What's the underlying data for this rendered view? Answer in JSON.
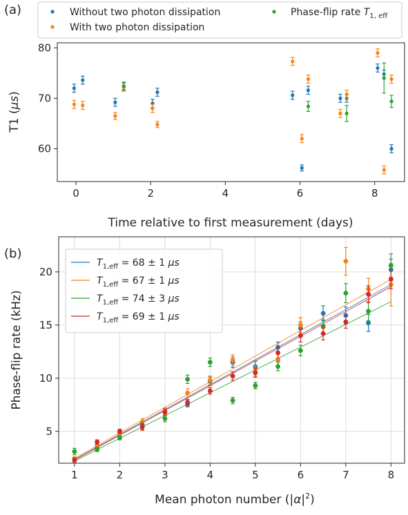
{
  "chart_data": [
    {
      "type": "scatter",
      "panel_label": "(a)",
      "xlabel": "Time relative to first measurement (days)",
      "ylabel_main": "T1 (",
      "ylabel_unit": "μs",
      "ylabel_close": ")",
      "xlim": [
        -0.5,
        8.8
      ],
      "ylim": [
        53.5,
        81
      ],
      "xticks": [
        0,
        2,
        4,
        6,
        8
      ],
      "xtick_labels": [
        "0",
        "2",
        "4",
        "6",
        "8"
      ],
      "yticks": [
        60,
        70,
        80
      ],
      "ytick_labels": [
        "60",
        "70",
        "80"
      ],
      "legend_placement": "top",
      "legend": {
        "s1": "Without two photon dissipation",
        "s2": "With two photon dissipation",
        "s3_main": "Phase-flip rate ",
        "s3_var": "T",
        "s3_sub": "1, eff"
      },
      "series": [
        {
          "key": "blue",
          "color": "#1f77b4",
          "points": [
            [
              -0.05,
              72.0,
              0.8
            ],
            [
              0.18,
              73.6,
              0.8
            ],
            [
              1.05,
              69.2,
              0.8
            ],
            [
              1.28,
              72.4,
              0.8
            ],
            [
              2.05,
              69.0,
              0.8
            ],
            [
              2.18,
              71.2,
              0.8
            ],
            [
              5.8,
              70.6,
              0.8
            ],
            [
              6.05,
              56.2,
              0.6
            ],
            [
              6.22,
              71.6,
              0.8
            ],
            [
              7.08,
              70.0,
              0.8
            ],
            [
              7.25,
              70.0,
              0.8
            ],
            [
              8.08,
              76.0,
              0.8
            ],
            [
              8.25,
              74.8,
              0.8
            ],
            [
              8.45,
              60.0,
              0.8
            ]
          ]
        },
        {
          "key": "orange",
          "color": "#ff7f0e",
          "points": [
            [
              -0.05,
              68.8,
              0.8
            ],
            [
              0.18,
              68.6,
              0.8
            ],
            [
              1.05,
              66.5,
              0.7
            ],
            [
              1.28,
              72.2,
              0.8
            ],
            [
              2.05,
              68.0,
              0.8
            ],
            [
              2.18,
              64.8,
              0.6
            ],
            [
              5.8,
              77.3,
              0.8
            ],
            [
              6.05,
              62.0,
              0.8
            ],
            [
              6.22,
              73.8,
              0.8
            ],
            [
              7.08,
              67.0,
              0.8
            ],
            [
              7.25,
              70.8,
              0.8
            ],
            [
              8.08,
              79.0,
              0.8
            ],
            [
              8.25,
              55.8,
              0.8
            ],
            [
              8.45,
              73.8,
              0.8
            ]
          ]
        },
        {
          "key": "green",
          "color": "#2ca02c",
          "points": [
            [
              1.28,
              72.4,
              0.7
            ],
            [
              6.22,
              68.4,
              1.0
            ],
            [
              7.25,
              67.0,
              1.6
            ],
            [
              8.25,
              74.0,
              3.0
            ],
            [
              8.45,
              69.4,
              1.2
            ]
          ]
        }
      ]
    },
    {
      "type": "scatter",
      "panel_label": "(b)",
      "xlabel_main": "Mean photon number (",
      "xlabel_var": "|α|",
      "xlabel_sup": "2",
      "xlabel_close": ")",
      "ylabel": "Phase-flip rate (kHz)",
      "xlim": [
        0.65,
        8.3
      ],
      "ylim": [
        2.0,
        23.3
      ],
      "xticks": [
        1,
        2,
        3,
        4,
        5,
        6,
        7,
        8
      ],
      "xtick_labels": [
        "1",
        "2",
        "3",
        "4",
        "5",
        "6",
        "7",
        "8"
      ],
      "yticks": [
        5,
        10,
        15,
        20
      ],
      "ytick_labels": [
        "5",
        "10",
        "15",
        "20"
      ],
      "grid": true,
      "legend_placement": "top-left",
      "legend": [
        {
          "var": "T",
          "sub": "1,eff",
          "eq": " = 68 ± 1  ",
          "unit": "μs"
        },
        {
          "var": "T",
          "sub": "1,eff",
          "eq": " = 67 ± 1  ",
          "unit": "μs"
        },
        {
          "var": "T",
          "sub": "1,eff",
          "eq": " = 74 ± 3  ",
          "unit": "μs"
        },
        {
          "var": "T",
          "sub": "1,eff",
          "eq": " = 69 ± 1  ",
          "unit": "μs"
        }
      ],
      "series": [
        {
          "key": "blue",
          "color": "#1f77b4",
          "line": [
            [
              1,
              2.35
            ],
            [
              8,
              18.8
            ]
          ],
          "points": [
            [
              1,
              2.3,
              0.2
            ],
            [
              1.5,
              3.5,
              0.2
            ],
            [
              2,
              4.9,
              0.2
            ],
            [
              2.5,
              5.6,
              0.3
            ],
            [
              3,
              6.8,
              0.3
            ],
            [
              3.5,
              7.6,
              0.3
            ],
            [
              4,
              9.7,
              0.4
            ],
            [
              4.5,
              11.5,
              0.5
            ],
            [
              5,
              11.1,
              0.5
            ],
            [
              5.5,
              12.9,
              0.5
            ],
            [
              6,
              14.7,
              0.6
            ],
            [
              6.5,
              16.1,
              0.7
            ],
            [
              7,
              15.9,
              0.8
            ],
            [
              7.5,
              15.2,
              0.8
            ],
            [
              8,
              20.2,
              1.0
            ]
          ]
        },
        {
          "key": "orange",
          "color": "#ff7f0e",
          "line": [
            [
              1,
              2.45
            ],
            [
              8,
              19.3
            ]
          ],
          "points": [
            [
              1,
              2.4,
              0.2
            ],
            [
              1.5,
              3.7,
              0.2
            ],
            [
              2,
              4.8,
              0.2
            ],
            [
              2.5,
              5.9,
              0.3
            ],
            [
              3,
              6.9,
              0.3
            ],
            [
              3.5,
              8.6,
              0.4
            ],
            [
              4,
              9.8,
              0.4
            ],
            [
              4.5,
              11.7,
              0.5
            ],
            [
              5,
              10.7,
              0.5
            ],
            [
              5.5,
              11.7,
              0.5
            ],
            [
              6,
              15.0,
              0.7
            ],
            [
              6.5,
              14.8,
              0.7
            ],
            [
              7,
              21.0,
              1.3
            ],
            [
              7.5,
              18.4,
              1.0
            ],
            [
              8,
              18.8,
              2.0
            ]
          ]
        },
        {
          "key": "green",
          "color": "#2ca02c",
          "line": [
            [
              1,
              2.2
            ],
            [
              8,
              17.2
            ]
          ],
          "points": [
            [
              1,
              3.1,
              0.3
            ],
            [
              1.5,
              3.3,
              0.2
            ],
            [
              2,
              4.4,
              0.2
            ],
            [
              2.5,
              5.5,
              0.3
            ],
            [
              3,
              6.2,
              0.3
            ],
            [
              3.5,
              9.9,
              0.4
            ],
            [
              4,
              11.5,
              0.4
            ],
            [
              4.5,
              7.9,
              0.3
            ],
            [
              5,
              9.3,
              0.3
            ],
            [
              5.5,
              11.1,
              0.4
            ],
            [
              6,
              12.6,
              0.5
            ],
            [
              6.5,
              14.9,
              0.6
            ],
            [
              7,
              18.0,
              0.9
            ],
            [
              7.5,
              16.3,
              0.9
            ],
            [
              8,
              20.6,
              1.1
            ]
          ]
        },
        {
          "key": "red",
          "color": "#d62728",
          "line": [
            [
              1,
              2.3
            ],
            [
              8,
              18.6
            ]
          ],
          "points": [
            [
              1,
              2.3,
              0.2
            ],
            [
              1.5,
              4.0,
              0.2
            ],
            [
              2,
              5.0,
              0.2
            ],
            [
              2.5,
              5.4,
              0.3
            ],
            [
              3,
              6.8,
              0.3
            ],
            [
              3.5,
              7.7,
              0.3
            ],
            [
              4,
              8.8,
              0.3
            ],
            [
              4.5,
              10.2,
              0.4
            ],
            [
              5,
              10.5,
              0.4
            ],
            [
              5.5,
              12.4,
              0.5
            ],
            [
              6,
              14.0,
              0.6
            ],
            [
              6.5,
              14.2,
              0.6
            ],
            [
              7,
              15.3,
              0.6
            ],
            [
              7.5,
              17.9,
              0.8
            ],
            [
              8,
              19.3,
              0.9
            ]
          ]
        }
      ]
    }
  ]
}
